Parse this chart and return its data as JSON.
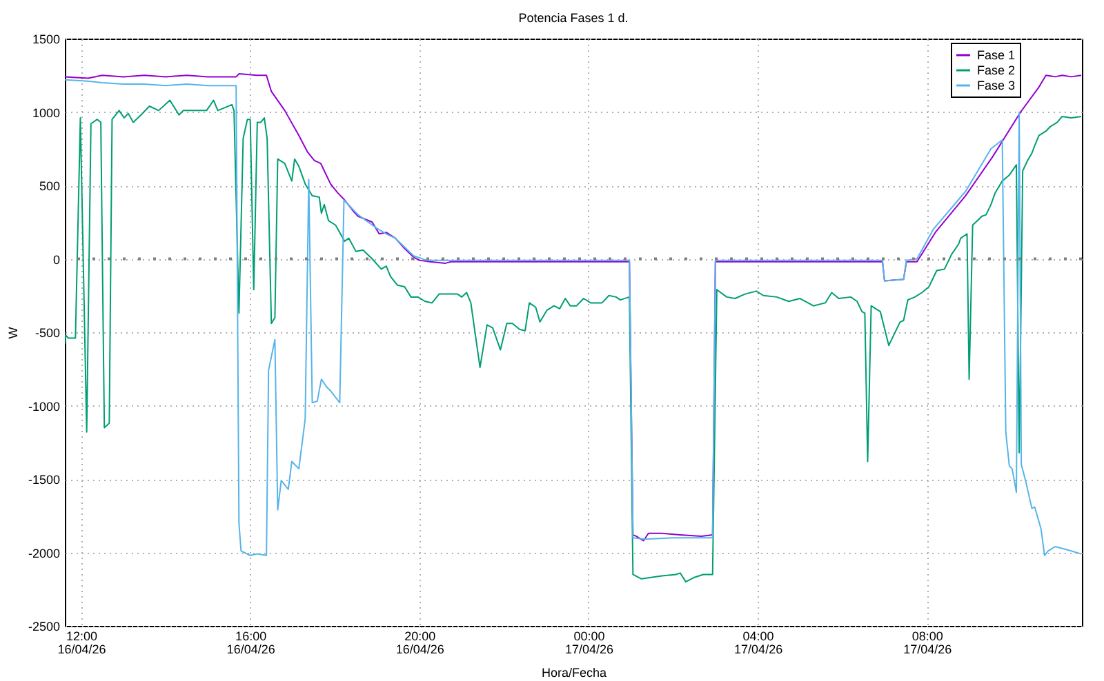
{
  "chart_data": {
    "type": "line",
    "title": "Potencia Fases 1 d.",
    "xlabel": "Hora/Fecha",
    "ylabel": "W",
    "xlim": [
      "--04-16T11:37",
      "--04-17T11:40"
    ],
    "xticks": [
      {
        "value": "--04-16T12:00",
        "label": "12:00\n16/04/26"
      },
      {
        "value": "--04-16T16:00",
        "label": "16:00\n16/04/26"
      },
      {
        "value": "--04-16T20:00",
        "label": "20:00\n16/04/26"
      },
      {
        "value": "--04-17T00:00",
        "label": "00:00\n17/04/26"
      },
      {
        "value": "--04-17T04:00",
        "label": "04:00\n17/04/26"
      },
      {
        "value": "--04-17T08:00",
        "label": "08:00\n17/04/26"
      }
    ],
    "ylim": [
      -2500,
      1500
    ],
    "yticks": [
      -2500,
      -2000,
      -1500,
      -1000,
      -500,
      0,
      500,
      1000,
      1500
    ],
    "grid": true,
    "legend": "top right",
    "ref_lines": [
      {
        "axis": "y",
        "value": 0,
        "color": "#808080",
        "line_style": "dotted"
      }
    ],
    "series": [
      {
        "name": "Fase 1",
        "color": "#9400d3",
        "x": [
          "--04-16T11:37",
          "--04-16T12:10",
          "--04-16T12:30",
          "--04-16T13:00",
          "--04-16T13:30",
          "--04-16T14:00",
          "--04-16T14:30",
          "--04-16T15:00",
          "--04-16T15:40",
          "--04-16T15:44",
          "--04-16T16:10",
          "--04-16T16:23",
          "--04-16T16:30",
          "--04-16T16:49",
          "--04-16T17:09",
          "--04-16T17:21",
          "--04-16T17:31",
          "--04-16T17:40",
          "--04-16T17:54",
          "--04-16T18:04",
          "--04-16T18:14",
          "--04-16T18:27",
          "--04-16T18:33",
          "--04-16T18:53",
          "--04-16T19:03",
          "--04-16T19:13",
          "--04-16T19:26",
          "--04-16T19:39",
          "--04-16T19:52",
          "--04-16T20:00",
          "--04-16T20:15",
          "--04-16T20:37",
          "--04-16T20:45",
          "--04-17T00:58",
          "--04-17T01:03",
          "--04-17T01:08",
          "--04-17T01:18",
          "--04-17T01:25",
          "--04-17T01:44",
          "--04-17T02:10",
          "--04-17T02:40",
          "--04-17T02:56",
          "--04-17T03:00",
          "--04-17T06:57",
          "--04-17T07:00",
          "--04-17T07:27",
          "--04-17T07:31",
          "--04-17T07:46",
          "--04-17T08:12",
          "--04-17T08:55",
          "--04-17T09:34",
          "--04-17T10:13",
          "--04-17T10:39",
          "--04-17T10:49",
          "--04-17T11:02",
          "--04-17T11:12",
          "--04-17T11:25",
          "--04-17T11:39"
        ],
        "values": [
          1240,
          1230,
          1250,
          1240,
          1250,
          1240,
          1250,
          1240,
          1240,
          1260,
          1250,
          1250,
          1140,
          1010,
          840,
          730,
          670,
          650,
          510,
          450,
          400,
          320,
          290,
          250,
          170,
          180,
          140,
          70,
          10,
          -10,
          -20,
          -30,
          -20,
          -20,
          -1880,
          -1890,
          -1920,
          -1870,
          -1870,
          -1880,
          -1890,
          -1880,
          -20,
          -20,
          -150,
          -140,
          -20,
          -20,
          180,
          430,
          700,
          1000,
          1170,
          1250,
          1240,
          1250,
          1240,
          1250
        ]
      },
      {
        "name": "Fase 2",
        "color": "#009e73",
        "x": [
          "--04-16T11:37",
          "--04-16T11:38",
          "--04-16T11:42",
          "--04-16T11:52",
          "--04-16T11:59",
          "--04-16T12:08",
          "--04-16T12:14",
          "--04-16T12:23",
          "--04-16T12:28",
          "--04-16T12:33",
          "--04-16T12:40",
          "--04-16T12:44",
          "--04-16T12:54",
          "--04-16T13:01",
          "--04-16T13:07",
          "--04-16T13:14",
          "--04-16T13:25",
          "--04-16T13:37",
          "--04-16T13:50",
          "--04-16T14:06",
          "--04-16T14:19",
          "--04-16T14:25",
          "--04-16T14:58",
          "--04-16T15:08",
          "--04-16T15:14",
          "--04-16T15:34",
          "--04-16T15:37",
          "--04-16T15:44",
          "--04-16T15:50",
          "--04-16T15:56",
          "--04-16T16:00",
          "--04-16T16:05",
          "--04-16T16:10",
          "--04-16T16:15",
          "--04-16T16:20",
          "--04-16T16:24",
          "--04-16T16:30",
          "--04-16T16:35",
          "--04-16T16:39",
          "--04-16T16:49",
          "--04-16T16:59",
          "--04-16T17:03",
          "--04-16T17:09",
          "--04-16T17:18",
          "--04-16T17:28",
          "--04-16T17:38",
          "--04-16T17:41",
          "--04-16T17:45",
          "--04-16T17:51",
          "--04-16T18:01",
          "--04-16T18:14",
          "--04-16T18:20",
          "--04-16T18:30",
          "--04-16T18:40",
          "--04-16T18:53",
          "--04-16T19:06",
          "--04-16T19:13",
          "--04-16T19:19",
          "--04-16T19:29",
          "--04-16T19:39",
          "--04-16T19:48",
          "--04-16T19:58",
          "--04-16T20:08",
          "--04-16T20:18",
          "--04-16T20:28",
          "--04-16T20:54",
          "--04-16T21:00",
          "--04-16T21:07",
          "--04-16T21:13",
          "--04-16T21:26",
          "--04-16T21:36",
          "--04-16T21:44",
          "--04-16T21:55",
          "--04-16T22:04",
          "--04-16T22:12",
          "--04-16T22:22",
          "--04-16T22:30",
          "--04-16T22:36",
          "--04-16T22:45",
          "--04-16T22:51",
          "--04-16T23:01",
          "--04-16T23:11",
          "--04-16T23:19",
          "--04-16T23:27",
          "--04-16T23:34",
          "--04-16T23:43",
          "--04-16T23:53",
          "--04-17T00:03",
          "--04-17T00:19",
          "--04-17T00:29",
          "--04-17T00:39",
          "--04-17T00:45",
          "--04-17T00:58",
          "--04-17T01:03",
          "--04-17T01:15",
          "--04-17T01:44",
          "--04-17T02:04",
          "--04-17T02:10",
          "--04-17T02:18",
          "--04-17T02:30",
          "--04-17T02:43",
          "--04-17T02:56",
          "--04-17T03:02",
          "--04-17T03:16",
          "--04-17T03:28",
          "--04-17T03:42",
          "--04-17T03:58",
          "--04-17T04:08",
          "--04-17T04:27",
          "--04-17T04:44",
          "--04-17T05:00",
          "--04-17T05:19",
          "--04-17T05:36",
          "--04-17T05:45",
          "--04-17T05:55",
          "--04-17T06:12",
          "--04-17T06:21",
          "--04-17T06:28",
          "--04-17T06:32",
          "--04-17T06:36",
          "--04-17T06:41",
          "--04-17T06:54",
          "--04-17T07:06",
          "--04-17T07:14",
          "--04-17T07:22",
          "--04-17T07:27",
          "--04-17T07:33",
          "--04-17T07:43",
          "--04-17T07:53",
          "--04-17T08:03",
          "--04-17T08:14",
          "--04-17T08:25",
          "--04-17T08:35",
          "--04-17T08:45",
          "--04-17T08:48",
          "--04-17T08:57",
          "--04-17T09:00",
          "--04-17T09:05",
          "--04-17T09:14",
          "--04-17T09:18",
          "--04-17T09:24",
          "--04-17T09:31",
          "--04-17T09:37",
          "--04-17T09:47",
          "--04-17T09:57",
          "--04-17T10:07",
          "--04-17T10:11",
          "--04-17T10:16",
          "--04-17T10:23",
          "--04-17T10:29",
          "--04-17T10:33",
          "--04-17T10:39",
          "--04-17T10:49",
          "--04-17T10:55",
          "--04-17T11:05",
          "--04-17T11:12",
          "--04-17T11:25",
          "--04-17T11:39"
        ],
        "values": [
          -580,
          -520,
          -540,
          -540,
          960,
          -1180,
          920,
          950,
          930,
          -1150,
          -1120,
          950,
          1010,
          960,
          990,
          930,
          980,
          1040,
          1010,
          1080,
          980,
          1010,
          1010,
          1080,
          1010,
          1050,
          1010,
          -370,
          820,
          950,
          950,
          -210,
          930,
          930,
          960,
          820,
          -440,
          -400,
          680,
          650,
          530,
          680,
          630,
          510,
          430,
          420,
          310,
          370,
          260,
          230,
          120,
          140,
          50,
          60,
          0,
          -70,
          -50,
          -120,
          -180,
          -190,
          -260,
          -260,
          -290,
          -300,
          -240,
          -240,
          -260,
          -230,
          -300,
          -740,
          -450,
          -470,
          -620,
          -440,
          -440,
          -480,
          -490,
          -300,
          -330,
          -430,
          -350,
          -320,
          -340,
          -270,
          -320,
          -320,
          -270,
          -300,
          -300,
          -250,
          -260,
          -280,
          -260,
          -2150,
          -2180,
          -2160,
          -2150,
          -2140,
          -2200,
          -2170,
          -2150,
          -2150,
          -210,
          -260,
          -270,
          -240,
          -220,
          -250,
          -260,
          -290,
          -270,
          -320,
          -300,
          -230,
          -270,
          -260,
          -290,
          -360,
          -370,
          -1380,
          -320,
          -360,
          -590,
          -510,
          -430,
          -420,
          -280,
          -260,
          -230,
          -190,
          -80,
          -70,
          30,
          100,
          140,
          170,
          -820,
          230,
          270,
          290,
          300,
          370,
          450,
          530,
          570,
          640,
          -1320,
          600,
          670,
          720,
          770,
          840,
          870,
          900,
          930,
          970,
          960,
          970
        ]
      },
      {
        "name": "Fase 3",
        "color": "#56b4e9",
        "x": [
          "--04-16T11:37",
          "--04-16T12:10",
          "--04-16T12:30",
          "--04-16T13:00",
          "--04-16T13:30",
          "--04-16T14:00",
          "--04-16T14:30",
          "--04-16T15:00",
          "--04-16T15:40",
          "--04-16T15:44",
          "--04-16T15:47",
          "--04-16T16:00",
          "--04-16T16:10",
          "--04-16T16:23",
          "--04-16T16:26",
          "--04-16T16:35",
          "--04-16T16:39",
          "--04-16T16:44",
          "--04-16T16:54",
          "--04-16T16:59",
          "--04-16T17:09",
          "--04-16T17:18",
          "--04-16T17:23",
          "--04-16T17:28",
          "--04-16T17:35",
          "--04-16T17:41",
          "--04-16T17:48",
          "--04-16T17:54",
          "--04-16T18:07",
          "--04-16T18:13",
          "--04-16T18:33",
          "--04-16T18:59",
          "--04-16T19:13",
          "--04-16T19:26",
          "--04-16T19:39",
          "--04-16T19:52",
          "--04-16T20:10",
          "--04-17T00:58",
          "--04-17T01:03",
          "--04-17T01:20",
          "--04-17T02:00",
          "--04-17T02:56",
          "--04-17T03:00",
          "--04-17T06:57",
          "--04-17T07:00",
          "--04-17T07:27",
          "--04-17T07:31",
          "--04-17T07:46",
          "--04-17T08:09",
          "--04-17T08:55",
          "--04-17T09:31",
          "--04-17T09:47",
          "--04-17T09:52",
          "--04-17T09:57",
          "--04-17T10:01",
          "--04-17T10:07",
          "--04-17T10:11",
          "--04-17T10:14",
          "--04-17T10:20",
          "--04-17T10:29",
          "--04-17T10:33",
          "--04-17T10:42",
          "--04-17T10:47",
          "--04-17T10:52",
          "--04-17T11:02",
          "--04-17T11:18",
          "--04-17T11:39"
        ],
        "values": [
          1220,
          1210,
          1200,
          1190,
          1190,
          1180,
          1190,
          1180,
          1180,
          -1800,
          -1990,
          -2020,
          -2010,
          -2020,
          -760,
          -550,
          -1710,
          -1510,
          -1570,
          -1380,
          -1430,
          -1090,
          540,
          -980,
          -970,
          -820,
          -870,
          -900,
          -980,
          400,
          300,
          210,
          170,
          140,
          80,
          20,
          -10,
          -10,
          -1900,
          -1910,
          -1900,
          -1900,
          -10,
          -10,
          -150,
          -140,
          -10,
          0,
          200,
          460,
          750,
          810,
          -1180,
          -1410,
          -1430,
          -1590,
          1000,
          -1400,
          -1510,
          -1700,
          -1690,
          -1840,
          -2020,
          -1990,
          -1960,
          -1980,
          -2010
        ]
      }
    ]
  }
}
